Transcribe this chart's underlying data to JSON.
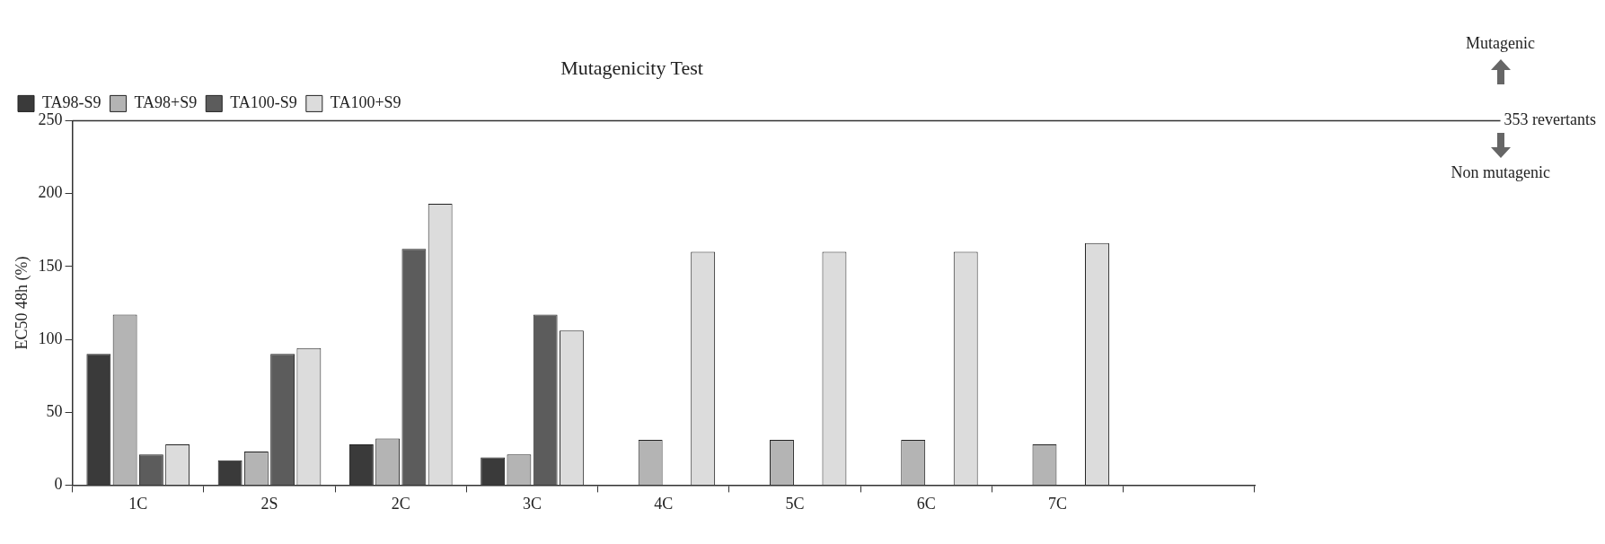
{
  "chart_data": {
    "type": "bar",
    "title": "Mutagenicity Test",
    "ylabel": "EC50 48h (%)",
    "categories": [
      "1C",
      "2S",
      "2C",
      "3C",
      "4C",
      "5C",
      "6C",
      "7C",
      null
    ],
    "series": [
      {
        "name": "TA98-S9",
        "color": "#3a3a3a",
        "values": [
          90,
          17,
          28,
          19,
          null,
          null,
          null,
          null,
          null
        ]
      },
      {
        "name": "TA98+S9",
        "color": "#b4b4b4",
        "values": [
          117,
          23,
          32,
          21,
          31,
          31,
          31,
          28,
          null
        ]
      },
      {
        "name": "TA100-S9",
        "color": "#5c5c5c",
        "values": [
          21,
          90,
          162,
          117,
          null,
          null,
          null,
          null,
          null
        ]
      },
      {
        "name": "TA100+S9",
        "color": "#dcdcdc",
        "values": [
          28,
          94,
          193,
          106,
          160,
          160,
          160,
          166,
          null
        ]
      }
    ],
    "ylim": [
      0,
      250
    ],
    "yticks": [
      0,
      50,
      100,
      150,
      200,
      250
    ],
    "grid": false,
    "legend": "top left",
    "ref_lines": [
      {
        "axis": "y",
        "value": 250,
        "label": "353 revertants",
        "color": "#333333"
      }
    ],
    "annotations": [
      "Mutagenic",
      "Non mutagenic"
    ]
  }
}
